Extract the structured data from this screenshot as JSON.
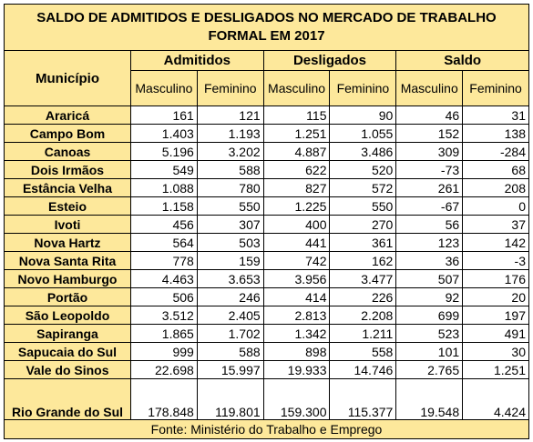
{
  "title": "SALDO DE ADMITIDOS E DESLIGADOS NO MERCADO DE TRABALHO FORMAL EM 2017",
  "header": {
    "municipio": "Município",
    "groups": [
      "Admitidos",
      "Desligados",
      "Saldo"
    ],
    "subheaders": [
      "Masculino",
      "Feminino",
      "Masculino",
      "Feminino",
      "Masculino",
      "Feminino"
    ]
  },
  "rows": [
    [
      "Araricá",
      "161",
      "121",
      "115",
      "90",
      "46",
      "31"
    ],
    [
      "Campo Bom",
      "1.403",
      "1.193",
      "1.251",
      "1.055",
      "152",
      "138"
    ],
    [
      "Canoas",
      "5.196",
      "3.202",
      "4.887",
      "3.486",
      "309",
      "-284"
    ],
    [
      "Dois Irmãos",
      "549",
      "588",
      "622",
      "520",
      "-73",
      "68"
    ],
    [
      "Estância Velha",
      "1.088",
      "780",
      "827",
      "572",
      "261",
      "208"
    ],
    [
      "Esteio",
      "1.158",
      "550",
      "1.225",
      "550",
      "-67",
      "0"
    ],
    [
      "Ivoti",
      "456",
      "307",
      "400",
      "270",
      "56",
      "37"
    ],
    [
      "Nova Hartz",
      "564",
      "503",
      "441",
      "361",
      "123",
      "142"
    ],
    [
      "Nova Santa Rita",
      "778",
      "159",
      "742",
      "162",
      "36",
      "-3"
    ],
    [
      "Novo Hamburgo",
      "4.463",
      "3.653",
      "3.956",
      "3.477",
      "507",
      "176"
    ],
    [
      "Portão",
      "506",
      "246",
      "414",
      "226",
      "92",
      "20"
    ],
    [
      "São Leopoldo",
      "3.512",
      "2.405",
      "2.813",
      "2.208",
      "699",
      "197"
    ],
    [
      "Sapiranga",
      "1.865",
      "1.702",
      "1.342",
      "1.211",
      "523",
      "491"
    ],
    [
      "Sapucaia do Sul",
      "999",
      "588",
      "898",
      "558",
      "101",
      "30"
    ],
    [
      "Vale do Sinos",
      "22.698",
      "15.997",
      "19.933",
      "14.746",
      "2.765",
      "1.251"
    ],
    [
      "Rio Grande do Sul",
      "178.848",
      "119.801",
      "159.300",
      "115.377",
      "19.548",
      "4.424"
    ]
  ],
  "footer": "Fonte: Ministério do Trabalho e Emprego"
}
